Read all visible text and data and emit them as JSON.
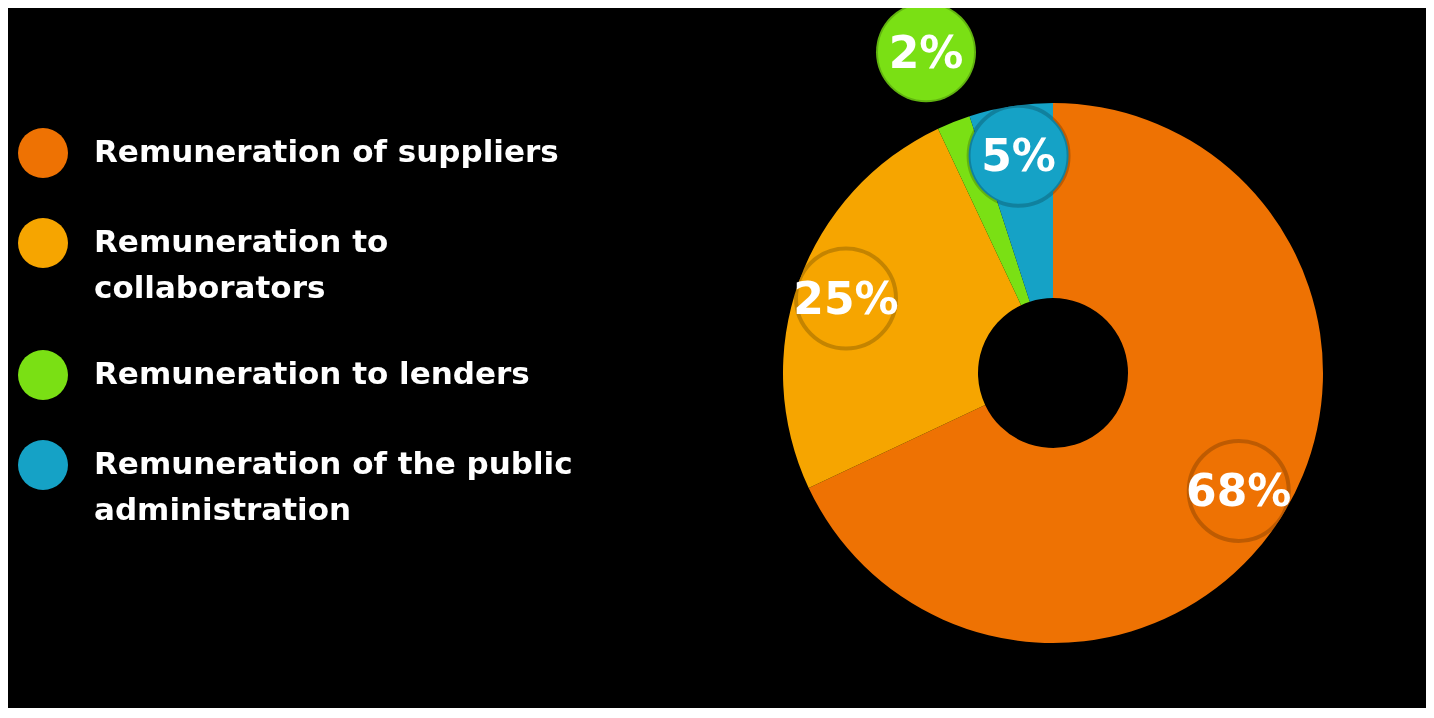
{
  "chart_data": {
    "type": "donut",
    "categories": [
      "Remuneration of suppliers",
      "Remuneration to collaborators",
      "Remuneration to lenders",
      "Remuneration of the public administration"
    ],
    "values": [
      68,
      25,
      2,
      5
    ],
    "colors": [
      "#ee7203",
      "#f6a500",
      "#7ae014",
      "#15a2c6"
    ],
    "value_labels": [
      "68%",
      "25%",
      "2%",
      "5%"
    ],
    "legend": "left"
  }
}
